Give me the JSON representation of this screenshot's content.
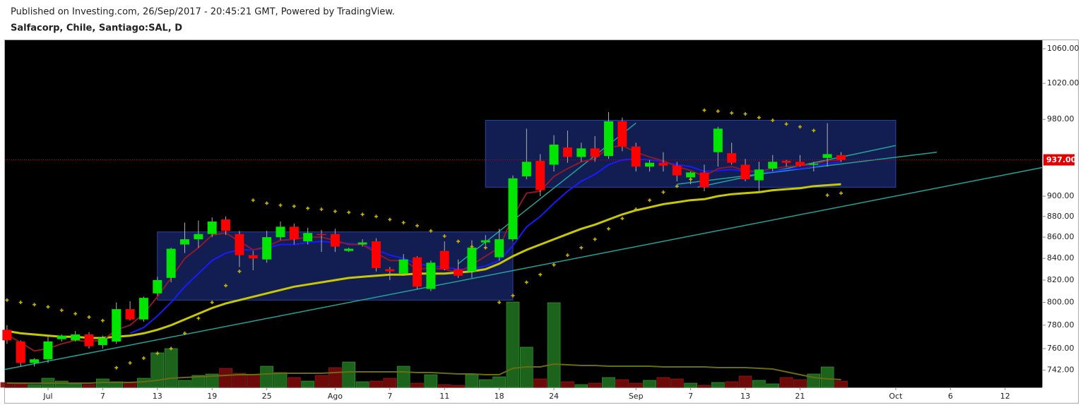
{
  "chart_data": {
    "type": "candlestick",
    "subtitle": "Published on Investing.com, 26/Sep/2017 - 20:45:21 GMT, Powered by TradingView.",
    "title": "Salfacorp, Chile, Santiago:SAL, D",
    "log_y": true,
    "x": [
      0,
      1,
      2,
      3,
      4,
      5,
      6,
      7,
      8,
      9,
      10,
      11,
      12,
      13,
      14,
      15,
      16,
      17,
      18,
      19,
      20,
      21,
      22,
      23,
      24,
      25,
      26,
      27,
      28,
      29,
      30,
      31,
      32,
      33,
      34,
      35,
      36,
      37,
      38,
      39,
      40,
      41,
      42,
      43,
      44,
      45,
      46,
      47,
      48,
      49,
      50,
      51,
      52,
      53,
      54,
      55,
      56,
      57,
      58,
      59,
      60,
      61
    ],
    "open": [
      776,
      766,
      748,
      751,
      768,
      767,
      772,
      763,
      766,
      794,
      785,
      808,
      822,
      853,
      858,
      863,
      877,
      863,
      843,
      839,
      860,
      870,
      856,
      863,
      863,
      847,
      853,
      856,
      830,
      826,
      841,
      812,
      847,
      830,
      828,
      855,
      841,
      858,
      920,
      936,
      932,
      950,
      940,
      949,
      941,
      978,
      951,
      930,
      934,
      931,
      919,
      924,
      945,
      944,
      932,
      916,
      928,
      936,
      935,
      932,
      939,
      942
    ],
    "high": [
      780,
      767,
      752,
      770,
      772,
      775,
      774,
      771,
      800,
      801,
      805,
      823,
      850,
      874,
      876,
      879,
      880,
      866,
      847,
      866,
      875,
      873,
      869,
      867,
      868,
      850,
      858,
      859,
      832,
      844,
      842,
      838,
      856,
      839,
      857,
      862,
      868,
      921,
      970,
      943,
      963,
      968,
      955,
      962,
      988,
      982,
      955,
      937,
      945,
      935,
      925,
      932,
      972,
      955,
      938,
      935,
      942,
      937,
      942,
      935,
      976,
      945
    ],
    "low": [
      764,
      745,
      745,
      748,
      766,
      766,
      760,
      760,
      764,
      784,
      783,
      806,
      818,
      845,
      850,
      860,
      862,
      832,
      829,
      836,
      857,
      853,
      853,
      846,
      846,
      846,
      851,
      828,
      820,
      824,
      812,
      810,
      829,
      822,
      822,
      852,
      838,
      856,
      917,
      900,
      925,
      934,
      935,
      935,
      938,
      946,
      925,
      925,
      925,
      915,
      912,
      905,
      930,
      932,
      915,
      905,
      925,
      930,
      930,
      925,
      930,
      935
    ],
    "close": [
      767,
      748,
      751,
      766,
      771,
      772,
      762,
      769,
      794,
      785,
      804,
      820,
      849,
      858,
      863,
      875,
      866,
      843,
      840,
      860,
      870,
      858,
      864,
      862,
      851,
      849,
      855,
      831,
      828,
      839,
      814,
      836,
      830,
      824,
      850,
      857,
      858,
      918,
      935,
      906,
      953,
      940,
      949,
      940,
      978,
      951,
      930,
      934,
      931,
      921,
      924,
      909,
      970,
      934,
      917,
      927,
      935,
      934,
      931,
      933,
      943,
      937
    ],
    "colors": {
      "up": "#00e600",
      "down": "#ff0000",
      "wick": "#b0b0b0"
    },
    "volume": {
      "lim": [
        0,
        140
      ],
      "values": [
        7,
        5,
        4,
        13,
        9,
        5,
        4,
        12,
        8,
        7,
        13,
        49,
        55,
        10,
        17,
        19,
        27,
        20,
        18,
        30,
        21,
        14,
        9,
        17,
        28,
        36,
        8,
        9,
        13,
        30,
        6,
        18,
        4,
        3,
        18,
        11,
        15,
        121,
        57,
        12,
        120,
        8,
        4,
        6,
        14,
        11,
        6,
        10,
        14,
        12,
        6,
        3,
        7,
        8,
        16,
        10,
        5,
        14,
        11,
        19,
        29,
        9
      ],
      "color_up": "#1f6e1f",
      "color_down": "#7a0a0a",
      "ma": {
        "color": "#6b6b12",
        "values": [
          6,
          6,
          6,
          6,
          6,
          6,
          6,
          7,
          7,
          7,
          8,
          10,
          13,
          14,
          15,
          16,
          17,
          18,
          18,
          19,
          20,
          20,
          20,
          20,
          21,
          22,
          22,
          22,
          22,
          22,
          21,
          21,
          20,
          19,
          19,
          18,
          18,
          27,
          29,
          29,
          33,
          32,
          31,
          31,
          30,
          30,
          30,
          30,
          29,
          29,
          29,
          29,
          28,
          28,
          28,
          27,
          26,
          22,
          18,
          14,
          12,
          11
        ]
      }
    },
    "lines": [
      {
        "color": "#c8c800",
        "width": 3,
        "values": [
          775,
          773,
          772,
          771,
          770,
          770,
          769,
          769,
          770,
          771,
          773,
          776,
          780,
          785,
          790,
          795,
          799,
          802,
          805,
          808,
          811,
          814,
          816,
          818,
          820,
          822,
          823,
          824,
          825,
          825,
          826,
          826,
          826,
          827,
          828,
          830,
          835,
          842,
          848,
          853,
          858,
          863,
          868,
          872,
          877,
          882,
          886,
          889,
          892,
          894,
          896,
          897,
          900,
          902,
          903,
          904,
          906,
          907,
          908,
          910,
          911,
          912
        ]
      },
      {
        "color": "#1a1aff",
        "width": 2,
        "values": [
          null,
          null,
          null,
          null,
          null,
          null,
          null,
          null,
          null,
          773,
          778,
          788,
          800,
          814,
          826,
          838,
          845,
          848,
          848,
          850,
          853,
          853,
          855,
          856,
          855,
          854,
          853,
          848,
          843,
          840,
          835,
          833,
          832,
          830,
          830,
          833,
          838,
          852,
          870,
          880,
          893,
          905,
          915,
          922,
          932,
          937,
          938,
          937,
          935,
          932,
          930,
          925,
          926,
          927,
          925,
          924,
          925,
          927,
          928,
          930,
          933,
          935
        ]
      },
      {
        "color": "#8b1a2a",
        "width": 2,
        "values": [
          772,
          765,
          758,
          760,
          764,
          767,
          766,
          767,
          776,
          780,
          790,
          805,
          822,
          840,
          850,
          862,
          864,
          856,
          848,
          851,
          857,
          858,
          860,
          860,
          857,
          853,
          853,
          845,
          838,
          838,
          830,
          831,
          830,
          827,
          834,
          842,
          850,
          880,
          903,
          905,
          920,
          928,
          935,
          938,
          950,
          952,
          945,
          940,
          936,
          930,
          926,
          920,
          928,
          930,
          926,
          925,
          928,
          930,
          931,
          932,
          936,
          937
        ]
      }
    ],
    "sar": {
      "color": "#c8b400",
      "values": [
        802,
        800,
        798,
        796,
        793,
        790,
        787,
        784,
        744,
        748,
        752,
        756,
        760,
        773,
        786,
        800,
        815,
        828,
        896,
        893,
        891,
        890,
        888,
        887,
        885,
        884,
        882,
        880,
        877,
        874,
        871,
        866,
        861,
        856,
        851,
        850,
        800,
        806,
        818,
        825,
        834,
        843,
        850,
        858,
        868,
        878,
        887,
        896,
        904,
        910,
        917,
        990,
        989,
        987,
        986,
        982,
        979,
        975,
        972,
        968,
        901,
        903
      ]
    },
    "drawings": {
      "box_fill": "#14205a",
      "box_stroke": "#2b45a8",
      "line_color": "#22a39a",
      "boxes": [
        {
          "x": [
            11,
            37
          ],
          "y": [
            802,
            865
          ]
        },
        {
          "x": [
            35,
            65
          ],
          "y": [
            909,
            979
          ]
        }
      ],
      "trendlines": [
        {
          "x": [
            -0.15,
            75.7
          ],
          "y": [
            742.6,
            929
          ]
        },
        {
          "x": [
            49,
            68
          ],
          "y": [
            912,
            945
          ]
        },
        {
          "x": [
            33,
            46
          ],
          "y": [
            835,
            976
          ]
        },
        {
          "x": [
            50.5,
            65
          ],
          "y": [
            909,
            952
          ]
        }
      ]
    },
    "last_price": {
      "value": 937,
      "label": "937.00",
      "color": "#e00000"
    },
    "xlim": [
      -0.15,
      75.7
    ],
    "xticks": [
      {
        "value": 3,
        "label": "Jul"
      },
      7,
      {
        "value": 11,
        "label": "13"
      },
      {
        "value": 15,
        "label": "19"
      },
      {
        "value": 19,
        "label": "25"
      },
      {
        "value": 24,
        "label": "Ago"
      },
      {
        "value": 28,
        "label": "7"
      },
      {
        "value": 32,
        "label": "11"
      },
      {
        "value": 36,
        "label": "18"
      },
      {
        "value": 40,
        "label": "24"
      },
      {
        "value": 46,
        "label": "Sep"
      },
      {
        "value": 50,
        "label": "7"
      },
      {
        "value": 54,
        "label": "13"
      },
      {
        "value": 58,
        "label": "21"
      },
      {
        "value": 65,
        "label": "Oct"
      },
      {
        "value": 69,
        "label": "6"
      },
      {
        "value": 73,
        "label": "12"
      }
    ],
    "ylim": [
      728,
      1070
    ],
    "yticks": [
      {
        "value": 742,
        "label": "742.00"
      },
      {
        "value": 760,
        "label": "760.00"
      },
      {
        "value": 780,
        "label": "780.00"
      },
      {
        "value": 800,
        "label": "800.00"
      },
      {
        "value": 820,
        "label": "820.00"
      },
      {
        "value": 840,
        "label": "840.00"
      },
      {
        "value": 860,
        "label": "860.00"
      },
      {
        "value": 880,
        "label": "880.00"
      },
      {
        "value": 900,
        "label": "900.00"
      },
      {
        "value": 980,
        "label": "980.00"
      },
      {
        "value": 1020,
        "label": "1020.00"
      },
      {
        "value": 1060,
        "label": "1060.00"
      }
    ]
  }
}
